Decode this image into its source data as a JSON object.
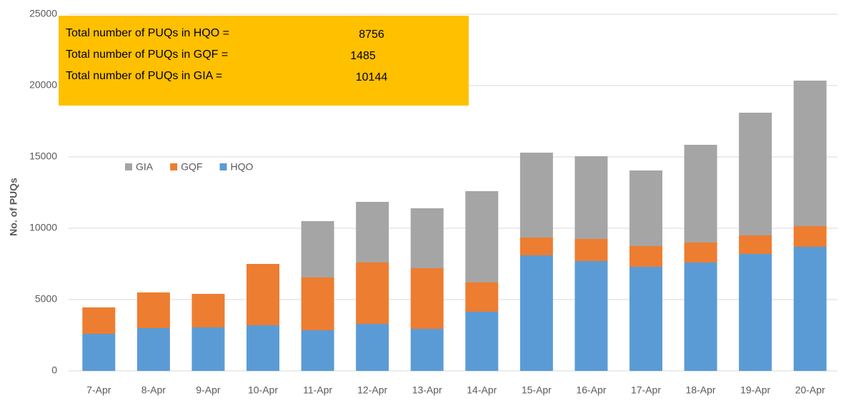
{
  "chart_data": {
    "type": "stacked-bar",
    "y_label": "No. of PUQs",
    "categories": [
      "7-Apr",
      "8-Apr",
      "9-Apr",
      "10-Apr",
      "11-Apr",
      "12-Apr",
      "13-Apr",
      "14-Apr",
      "15-Apr",
      "16-Apr",
      "17-Apr",
      "18-Apr",
      "19-Apr",
      "20-Apr"
    ],
    "series": [
      {
        "name": "HQO",
        "color": "#5b9bd5",
        "values": [
          2600,
          3000,
          3050,
          3200,
          2850,
          3300,
          2950,
          4150,
          8100,
          7700,
          7300,
          7600,
          8200,
          8700
        ]
      },
      {
        "name": "GQF",
        "color": "#ed7d31",
        "values": [
          1850,
          2500,
          2350,
          4300,
          3700,
          4300,
          4250,
          2050,
          1250,
          1550,
          1450,
          1400,
          1300,
          1450
        ]
      },
      {
        "name": "GIA",
        "color": "#a5a5a5",
        "values": [
          0,
          0,
          0,
          0,
          3950,
          4250,
          4200,
          6400,
          5950,
          5800,
          5300,
          6850,
          8600,
          10200
        ]
      }
    ],
    "ylim": [
      0,
      25000
    ],
    "yticks": [
      0,
      5000,
      10000,
      15000,
      20000,
      25000
    ],
    "grid": true,
    "annotations": [
      {
        "text": "Total number of PUQs in HQO =",
        "value": 8756
      },
      {
        "text": "Total number of PUQs in GQF =",
        "value": 1485
      },
      {
        "text": "Total number of PUQs in GIA =",
        "value": 10144
      }
    ],
    "annotation_color": "#ffc000"
  }
}
